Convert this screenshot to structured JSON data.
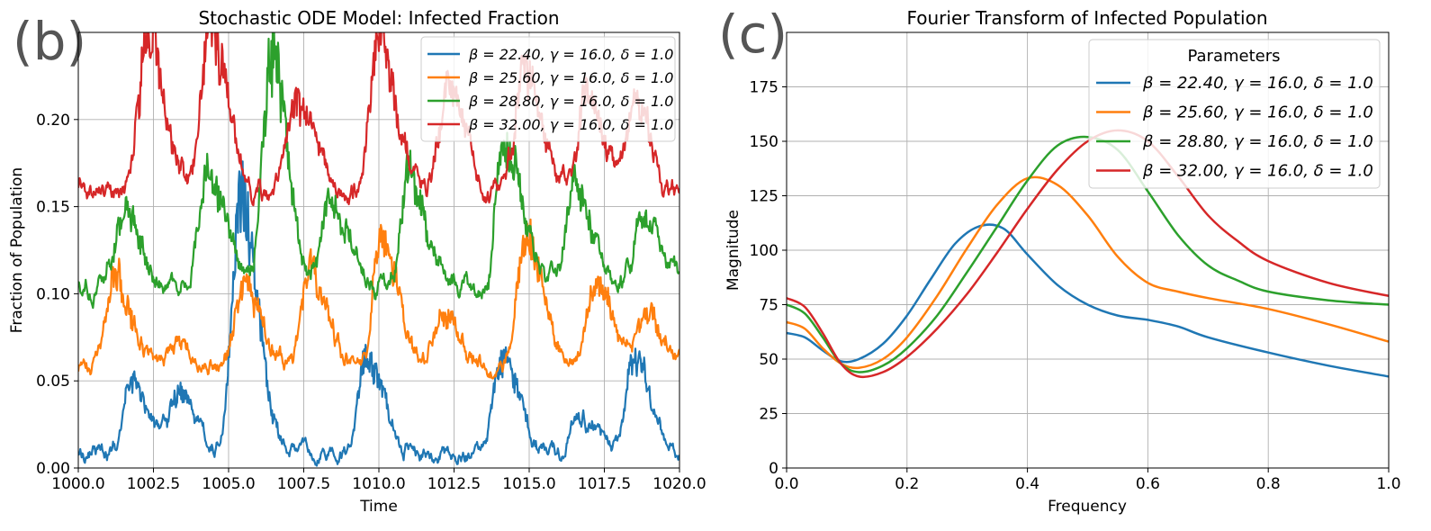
{
  "chart_data": [
    {
      "panel_label": "(b)",
      "type": "line",
      "title": "Stochastic ODE Model: Infected Fraction",
      "xlabel": "Time",
      "ylabel": "Fraction of Population",
      "xlim": [
        1000,
        1020
      ],
      "ylim": [
        0,
        0.25
      ],
      "grid": true,
      "legend_position": "top-right",
      "x_ticks": [
        "1000.0",
        "1002.5",
        "1005.0",
        "1007.5",
        "1010.0",
        "1012.5",
        "1015.0",
        "1017.5",
        "1020.0"
      ],
      "x_tick_values": [
        1000,
        1002.5,
        1005,
        1007.5,
        1010,
        1012.5,
        1015,
        1017.5,
        1020
      ],
      "y_ticks": [
        "0.00",
        "0.05",
        "0.10",
        "0.15",
        "0.20"
      ],
      "y_tick_values": [
        0,
        0.05,
        0.1,
        0.15,
        0.2
      ],
      "series": [
        {
          "name": "β = 22.40, γ = 16.0, δ = 1.0",
          "color": "#1f77b4",
          "baseline": 0.008,
          "noise": 0.0035,
          "peaks": [
            [
              1001.8,
              0.05
            ],
            [
              1003.3,
              0.045
            ],
            [
              1005.4,
              0.16
            ],
            [
              1009.6,
              0.065
            ],
            [
              1014.1,
              0.065
            ],
            [
              1016.7,
              0.03
            ],
            [
              1018.5,
              0.063
            ]
          ]
        },
        {
          "name": "β = 25.60, γ = 16.0, δ = 1.0",
          "color": "#ff7f0e",
          "baseline": 0.058,
          "noise": 0.004,
          "peaks": [
            [
              1001.2,
              0.11
            ],
            [
              1003.3,
              0.07
            ],
            [
              1005.5,
              0.105
            ],
            [
              1007.7,
              0.112
            ],
            [
              1010.1,
              0.13
            ],
            [
              1012.1,
              0.09
            ],
            [
              1014.9,
              0.135
            ],
            [
              1017.2,
              0.105
            ],
            [
              1018.9,
              0.09
            ]
          ]
        },
        {
          "name": "β = 28.80, γ = 16.0, δ = 1.0",
          "color": "#2ca02c",
          "baseline": 0.105,
          "noise": 0.005,
          "peaks": [
            [
              1001.5,
              0.15
            ],
            [
              1004.3,
              0.17
            ],
            [
              1006.4,
              0.235
            ],
            [
              1008.4,
              0.15
            ],
            [
              1011.0,
              0.165
            ],
            [
              1014.2,
              0.19
            ],
            [
              1016.5,
              0.16
            ],
            [
              1018.7,
              0.14
            ]
          ]
        },
        {
          "name": "β = 32.00, γ = 16.0, δ = 1.0",
          "color": "#d62728",
          "baseline": 0.158,
          "noise": 0.005,
          "peaks": [
            [
              1002.3,
              0.25
            ],
            [
              1004.4,
              0.25
            ],
            [
              1007.3,
              0.215
            ],
            [
              1010.0,
              0.25
            ],
            [
              1012.3,
              0.22
            ],
            [
              1014.8,
              0.23
            ],
            [
              1016.9,
              0.215
            ],
            [
              1018.5,
              0.21
            ]
          ]
        }
      ]
    },
    {
      "panel_label": "(c)",
      "type": "line",
      "title": "Fourier Transform of Infected Population",
      "xlabel": "Frequency",
      "ylabel": "Magnitude",
      "xlim": [
        0,
        1
      ],
      "ylim": [
        0,
        200
      ],
      "grid": true,
      "legend_title": "Parameters",
      "legend_position": "top-right",
      "x_ticks": [
        "0.0",
        "0.2",
        "0.4",
        "0.6",
        "0.8",
        "1.0"
      ],
      "x_tick_values": [
        0,
        0.2,
        0.4,
        0.6,
        0.8,
        1.0
      ],
      "y_ticks": [
        "0",
        "25",
        "50",
        "75",
        "100",
        "125",
        "150",
        "175"
      ],
      "y_tick_values": [
        0,
        25,
        50,
        75,
        100,
        125,
        150,
        175
      ],
      "series": [
        {
          "name": "β = 22.40, γ = 16.0, δ = 1.0",
          "color": "#1f77b4",
          "x": [
            0,
            0.03,
            0.06,
            0.09,
            0.12,
            0.16,
            0.2,
            0.24,
            0.28,
            0.32,
            0.36,
            0.4,
            0.45,
            0.5,
            0.55,
            0.6,
            0.65,
            0.7,
            0.8,
            0.9,
            1.0
          ],
          "y": [
            62,
            60,
            54,
            49,
            50,
            57,
            70,
            87,
            103,
            111,
            110,
            98,
            84,
            75,
            70,
            68,
            65,
            60,
            53,
            47,
            42
          ]
        },
        {
          "name": "β = 25.60, γ = 16.0, δ = 1.0",
          "color": "#ff7f0e",
          "x": [
            0,
            0.03,
            0.06,
            0.09,
            0.12,
            0.16,
            0.2,
            0.25,
            0.3,
            0.35,
            0.4,
            0.45,
            0.5,
            0.55,
            0.6,
            0.65,
            0.7,
            0.8,
            0.9,
            1.0
          ],
          "y": [
            67,
            64,
            55,
            48,
            46,
            50,
            60,
            79,
            101,
            121,
            133,
            130,
            116,
            97,
            85,
            81,
            78,
            73,
            66,
            58
          ]
        },
        {
          "name": "β = 28.80, γ = 16.0, δ = 1.0",
          "color": "#2ca02c",
          "x": [
            0,
            0.03,
            0.06,
            0.09,
            0.12,
            0.16,
            0.2,
            0.25,
            0.3,
            0.35,
            0.4,
            0.45,
            0.5,
            0.55,
            0.6,
            0.65,
            0.7,
            0.75,
            0.8,
            0.9,
            1.0
          ],
          "y": [
            75,
            71,
            60,
            48,
            44,
            47,
            55,
            70,
            90,
            111,
            132,
            148,
            152,
            146,
            127,
            107,
            93,
            86,
            81,
            77,
            75
          ]
        },
        {
          "name": "β = 32.00, γ = 16.0, δ = 1.0",
          "color": "#d62728",
          "x": [
            0,
            0.03,
            0.06,
            0.09,
            0.12,
            0.16,
            0.2,
            0.25,
            0.3,
            0.35,
            0.4,
            0.45,
            0.5,
            0.55,
            0.6,
            0.65,
            0.7,
            0.75,
            0.8,
            0.9,
            1.0
          ],
          "y": [
            78,
            74,
            62,
            48,
            42,
            44,
            51,
            64,
            80,
            99,
            119,
            137,
            150,
            155,
            150,
            134,
            116,
            104,
            95,
            85,
            79
          ]
        }
      ]
    }
  ]
}
